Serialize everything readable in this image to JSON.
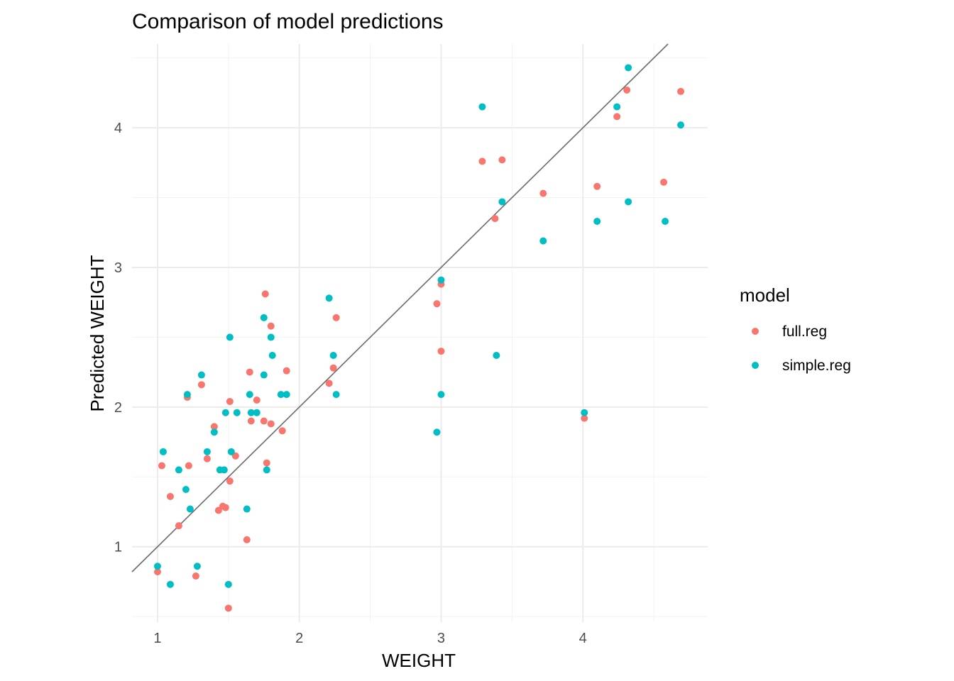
{
  "chart_data": {
    "type": "scatter",
    "title": "Comparison of model predictions",
    "xlabel": "WEIGHT",
    "ylabel": "Predicted WEIGHT",
    "xlim": [
      0.82,
      4.88
    ],
    "ylim": [
      0.46,
      4.6
    ],
    "x_ticks": [
      1,
      2,
      3,
      4
    ],
    "y_ticks": [
      1,
      2,
      3,
      4
    ],
    "grid": true,
    "reference_line": {
      "slope": 1,
      "intercept": 0
    },
    "legend": {
      "title": "model",
      "placement": "right"
    },
    "series": [
      {
        "name": "full.reg",
        "color": "#F8766D",
        "points": [
          [
            1.0,
            0.82
          ],
          [
            1.03,
            1.58
          ],
          [
            1.09,
            1.36
          ],
          [
            1.15,
            1.15
          ],
          [
            1.21,
            2.07
          ],
          [
            1.22,
            1.58
          ],
          [
            1.27,
            0.79
          ],
          [
            1.31,
            2.16
          ],
          [
            1.35,
            1.63
          ],
          [
            1.4,
            1.86
          ],
          [
            1.43,
            1.26
          ],
          [
            1.46,
            1.29
          ],
          [
            1.48,
            1.28
          ],
          [
            1.5,
            0.56
          ],
          [
            1.51,
            2.04
          ],
          [
            1.51,
            1.47
          ],
          [
            1.55,
            1.65
          ],
          [
            1.63,
            1.05
          ],
          [
            1.65,
            2.25
          ],
          [
            1.66,
            1.9
          ],
          [
            1.7,
            2.05
          ],
          [
            1.75,
            1.9
          ],
          [
            1.76,
            2.81
          ],
          [
            1.77,
            1.6
          ],
          [
            1.8,
            2.58
          ],
          [
            1.8,
            1.88
          ],
          [
            1.88,
            1.83
          ],
          [
            1.91,
            2.26
          ],
          [
            2.21,
            2.17
          ],
          [
            2.24,
            2.28
          ],
          [
            2.26,
            2.64
          ],
          [
            2.97,
            2.74
          ],
          [
            3.0,
            2.88
          ],
          [
            3.0,
            2.4
          ],
          [
            3.29,
            3.76
          ],
          [
            3.38,
            3.35
          ],
          [
            3.43,
            3.77
          ],
          [
            3.72,
            3.53
          ],
          [
            4.01,
            1.92
          ],
          [
            4.1,
            3.58
          ],
          [
            4.24,
            4.08
          ],
          [
            4.31,
            4.27
          ],
          [
            4.57,
            3.61
          ],
          [
            4.69,
            4.26
          ]
        ]
      },
      {
        "name": "simple.reg",
        "color": "#00BFC4",
        "points": [
          [
            1.0,
            0.86
          ],
          [
            1.04,
            1.68
          ],
          [
            1.09,
            0.73
          ],
          [
            1.15,
            1.55
          ],
          [
            1.2,
            1.41
          ],
          [
            1.21,
            2.09
          ],
          [
            1.23,
            1.27
          ],
          [
            1.28,
            0.86
          ],
          [
            1.31,
            2.23
          ],
          [
            1.35,
            1.68
          ],
          [
            1.4,
            1.82
          ],
          [
            1.44,
            1.55
          ],
          [
            1.47,
            1.55
          ],
          [
            1.48,
            1.96
          ],
          [
            1.5,
            0.73
          ],
          [
            1.51,
            2.5
          ],
          [
            1.52,
            1.68
          ],
          [
            1.56,
            1.96
          ],
          [
            1.63,
            1.27
          ],
          [
            1.65,
            2.09
          ],
          [
            1.66,
            1.96
          ],
          [
            1.7,
            1.96
          ],
          [
            1.75,
            2.64
          ],
          [
            1.75,
            2.23
          ],
          [
            1.77,
            1.55
          ],
          [
            1.8,
            2.5
          ],
          [
            1.81,
            2.37
          ],
          [
            1.87,
            2.09
          ],
          [
            1.91,
            2.09
          ],
          [
            2.21,
            2.78
          ],
          [
            2.24,
            2.37
          ],
          [
            2.26,
            2.09
          ],
          [
            2.97,
            1.82
          ],
          [
            3.0,
            2.91
          ],
          [
            3.0,
            2.09
          ],
          [
            3.29,
            4.15
          ],
          [
            3.39,
            2.37
          ],
          [
            3.43,
            3.47
          ],
          [
            3.72,
            3.19
          ],
          [
            4.01,
            1.96
          ],
          [
            4.1,
            3.33
          ],
          [
            4.24,
            4.15
          ],
          [
            4.32,
            4.43
          ],
          [
            4.32,
            3.47
          ],
          [
            4.58,
            3.33
          ],
          [
            4.69,
            4.02
          ]
        ]
      }
    ]
  }
}
